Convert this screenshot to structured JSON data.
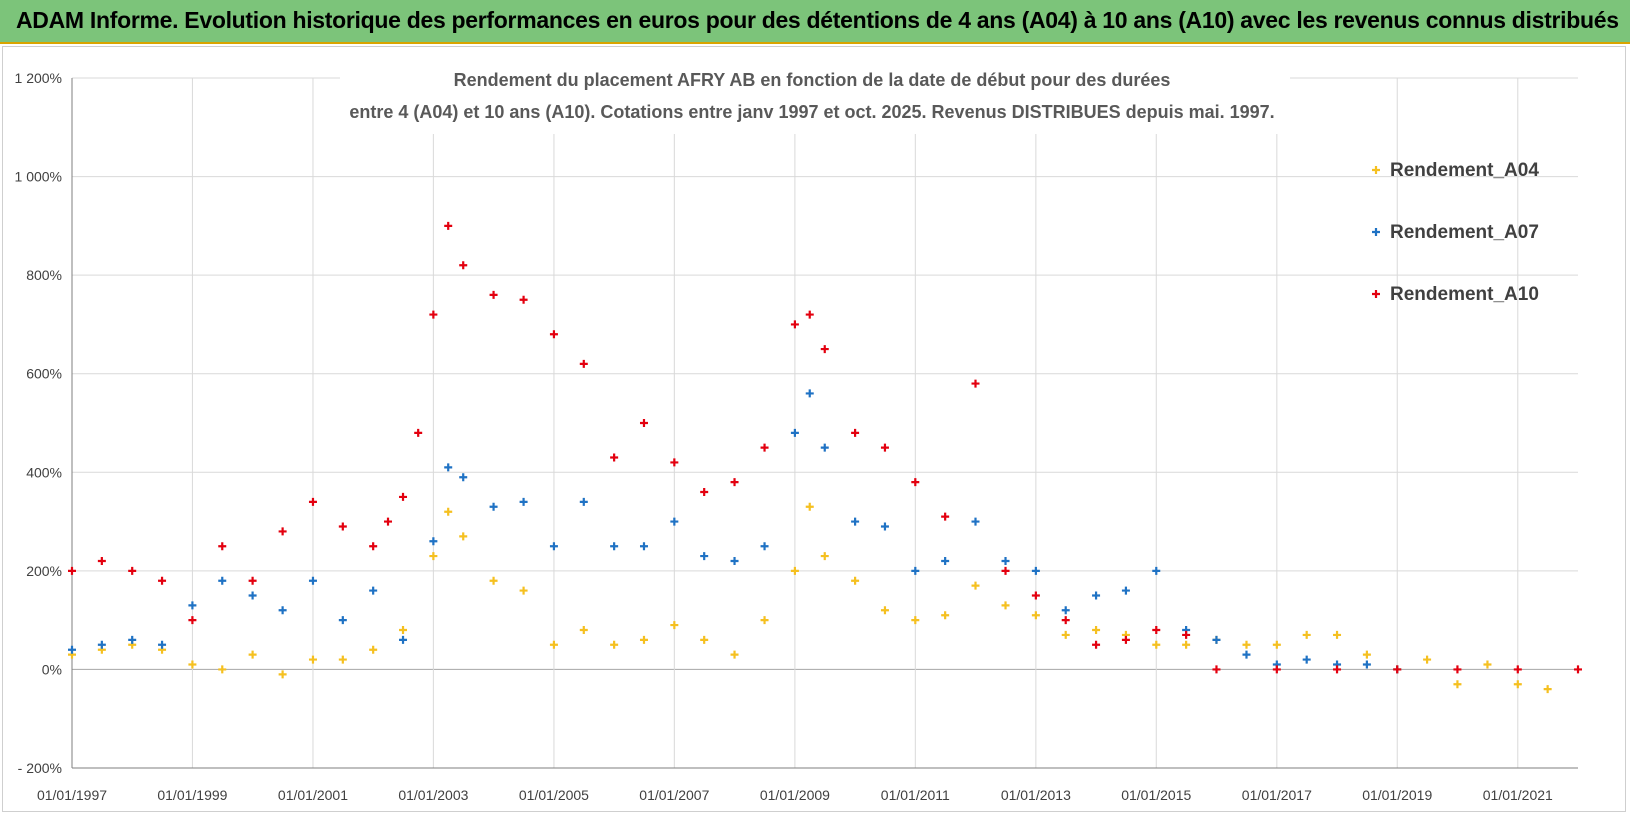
{
  "banner": {
    "text": "ADAM Informe. Evolution historique des performances en euros pour des détentions de 4 ans (A04) à 10 ans (A10) avec les revenus connus distribués"
  },
  "chart_data": {
    "type": "scatter",
    "title_line1": "Rendement du placement AFRY AB en fonction de la date de début pour des durées",
    "title_line2": "entre 4 (A04) et 10 ans (A10). Cotations entre janv 1997 et oct. 2025.  Revenus DISTRIBUES depuis mai. 1997.",
    "x_ticks": [
      "01/01/1997",
      "01/01/1999",
      "01/01/2001",
      "01/01/2003",
      "01/01/2005",
      "01/01/2007",
      "01/01/2009",
      "01/01/2011",
      "01/01/2013",
      "01/01/2015",
      "01/01/2017",
      "01/01/2019",
      "01/01/2021"
    ],
    "y_ticks": [
      "1 200%",
      "1 000%",
      "800%",
      "600%",
      "400%",
      "200%",
      "0%",
      "- 200%"
    ],
    "xlim": [
      "1997-01-01",
      "2022-01-01"
    ],
    "ylim": [
      -200,
      1200
    ],
    "grid": true,
    "legend_position": "right",
    "series": [
      {
        "name": "Rendement_A04",
        "color": "#f5c020",
        "x": [
          "1997-01-01",
          "1997-07-01",
          "1998-01-01",
          "1998-07-01",
          "1999-01-01",
          "1999-07-01",
          "2000-01-01",
          "2000-07-01",
          "2001-01-01",
          "2001-07-01",
          "2002-01-01",
          "2002-07-01",
          "2003-01-01",
          "2003-04-01",
          "2003-07-01",
          "2004-01-01",
          "2004-07-01",
          "2005-01-01",
          "2005-07-01",
          "2006-01-01",
          "2006-07-01",
          "2007-01-01",
          "2007-07-01",
          "2008-01-01",
          "2008-07-01",
          "2009-01-01",
          "2009-04-01",
          "2009-07-01",
          "2010-01-01",
          "2010-07-01",
          "2011-01-01",
          "2011-07-01",
          "2012-01-01",
          "2012-07-01",
          "2013-01-01",
          "2013-07-01",
          "2014-01-01",
          "2014-07-01",
          "2015-01-01",
          "2015-07-01",
          "2016-01-01",
          "2016-07-01",
          "2017-01-01",
          "2017-07-01",
          "2018-01-01",
          "2018-07-01",
          "2019-01-01",
          "2019-07-01",
          "2020-01-01",
          "2020-07-01",
          "2021-01-01",
          "2021-07-01"
        ],
        "values": [
          30,
          40,
          50,
          40,
          10,
          0,
          30,
          -10,
          20,
          20,
          40,
          80,
          230,
          320,
          270,
          180,
          160,
          50,
          80,
          50,
          60,
          90,
          60,
          30,
          100,
          200,
          330,
          230,
          180,
          120,
          100,
          110,
          170,
          130,
          110,
          70,
          80,
          70,
          50,
          50,
          60,
          50,
          50,
          70,
          70,
          30,
          0,
          20,
          -30,
          10,
          -30,
          -40
        ]
      },
      {
        "name": "Rendement_A07",
        "color": "#1f72c4",
        "x": [
          "1997-01-01",
          "1997-07-01",
          "1998-01-01",
          "1998-07-01",
          "1999-01-01",
          "1999-07-01",
          "2000-01-01",
          "2000-07-01",
          "2001-01-01",
          "2001-07-01",
          "2002-01-01",
          "2002-07-01",
          "2003-01-01",
          "2003-04-01",
          "2003-07-01",
          "2004-01-01",
          "2004-07-01",
          "2005-01-01",
          "2005-07-01",
          "2006-01-01",
          "2006-07-01",
          "2007-01-01",
          "2007-07-01",
          "2008-01-01",
          "2008-07-01",
          "2009-01-01",
          "2009-04-01",
          "2009-07-01",
          "2010-01-01",
          "2010-07-01",
          "2011-01-01",
          "2011-07-01",
          "2012-01-01",
          "2012-07-01",
          "2013-01-01",
          "2013-07-01",
          "2014-01-01",
          "2014-07-01",
          "2015-01-01",
          "2015-07-01",
          "2016-01-01",
          "2016-07-01",
          "2017-01-01",
          "2017-07-01",
          "2018-01-01",
          "2018-07-01",
          "2019-01-01"
        ],
        "values": [
          40,
          50,
          60,
          50,
          130,
          180,
          150,
          120,
          180,
          100,
          160,
          60,
          260,
          410,
          390,
          330,
          340,
          250,
          340,
          250,
          250,
          300,
          230,
          220,
          250,
          480,
          560,
          450,
          300,
          290,
          200,
          220,
          300,
          220,
          200,
          120,
          150,
          160,
          200,
          80,
          60,
          30,
          10,
          20,
          10,
          10,
          0
        ]
      },
      {
        "name": "Rendement_A10",
        "color": "#e3000f",
        "x": [
          "1997-01-01",
          "1997-07-01",
          "1998-01-01",
          "1998-07-01",
          "1999-01-01",
          "1999-07-01",
          "2000-01-01",
          "2000-07-01",
          "2001-01-01",
          "2001-07-01",
          "2002-01-01",
          "2002-04-01",
          "2002-07-01",
          "2002-10-01",
          "2003-01-01",
          "2003-04-01",
          "2003-07-01",
          "2004-01-01",
          "2004-07-01",
          "2005-01-01",
          "2005-07-01",
          "2006-01-01",
          "2006-07-01",
          "2007-01-01",
          "2007-07-01",
          "2008-01-01",
          "2008-07-01",
          "2009-01-01",
          "2009-04-01",
          "2009-07-01",
          "2010-01-01",
          "2010-07-01",
          "2011-01-01",
          "2011-07-01",
          "2012-01-01",
          "2012-07-01",
          "2013-01-01",
          "2013-07-01",
          "2014-01-01",
          "2014-07-01",
          "2015-01-01",
          "2015-07-01",
          "2016-01-01",
          "2017-01-01",
          "2018-01-01",
          "2019-01-01",
          "2020-01-01",
          "2021-01-01",
          "2022-01-01"
        ],
        "values": [
          200,
          220,
          200,
          180,
          100,
          250,
          180,
          280,
          340,
          290,
          250,
          300,
          350,
          480,
          720,
          900,
          820,
          760,
          750,
          680,
          620,
          430,
          500,
          420,
          360,
          380,
          450,
          700,
          720,
          650,
          480,
          450,
          380,
          310,
          580,
          200,
          150,
          100,
          50,
          60,
          80,
          70,
          0,
          0,
          0,
          0,
          0,
          0,
          0
        ]
      }
    ]
  }
}
